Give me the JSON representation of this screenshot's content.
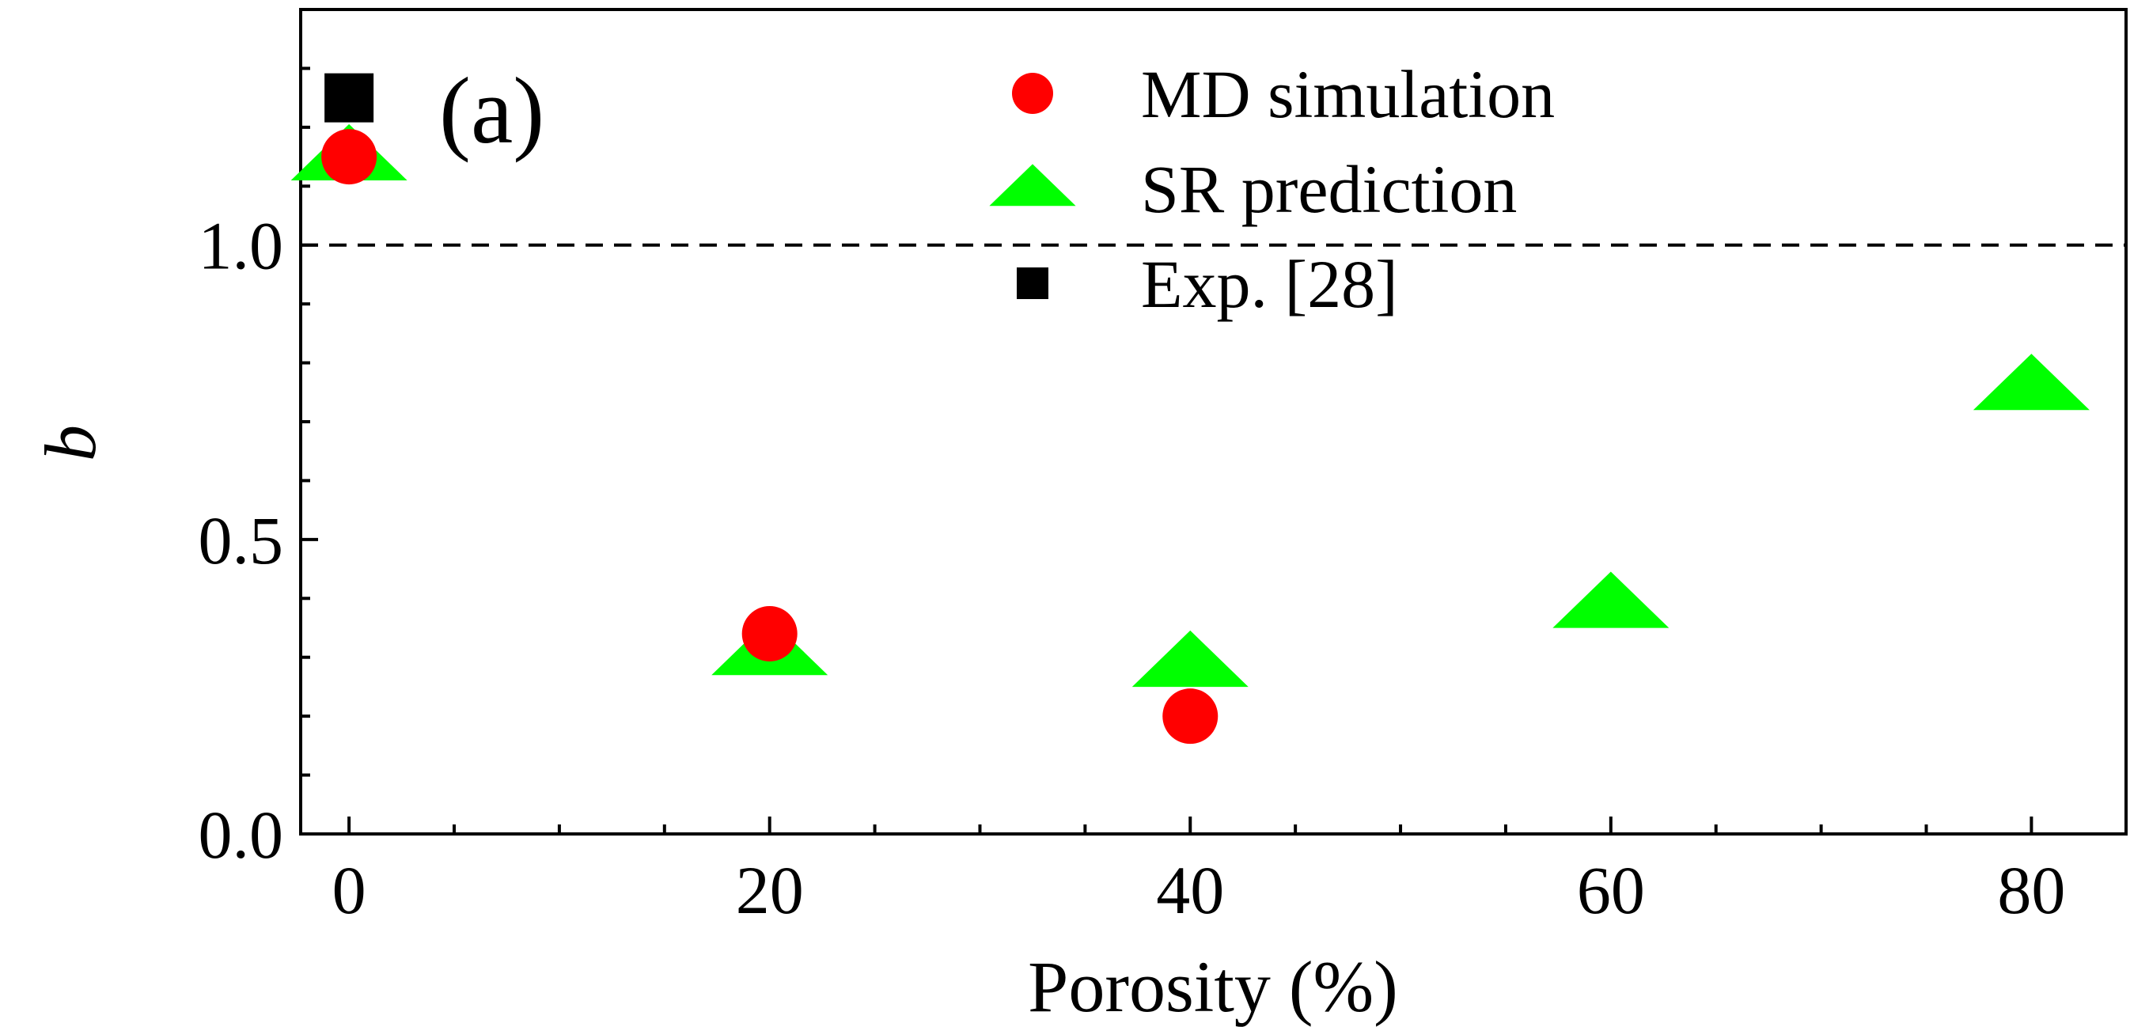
{
  "chart_data": {
    "type": "scatter",
    "panel_label": "(a)",
    "title": "",
    "xlabel": "Porosity (%)",
    "ylabel": "b",
    "xlim": [
      -2.3,
      84.5
    ],
    "ylim": [
      0.0,
      1.4
    ],
    "x_ticks": [
      0,
      20,
      40,
      60,
      80
    ],
    "y_ticks": [
      0.0,
      0.5,
      1.0
    ],
    "x_tick_labels": [
      "0",
      "20",
      "40",
      "60",
      "80"
    ],
    "y_tick_labels": [
      "0.0",
      "0.5",
      "1.0"
    ],
    "reference_line": {
      "y": 1.0,
      "style": "dashed",
      "color": "#000000"
    },
    "legend": {
      "placement": "top-center"
    },
    "series": [
      {
        "name": "MD simulation",
        "marker": "circle",
        "color": "#ff0000",
        "x": [
          0,
          20,
          40
        ],
        "y": [
          1.15,
          0.34,
          0.2
        ]
      },
      {
        "name": "SR prediction",
        "marker": "triangle",
        "color": "#00ff00",
        "x": [
          0,
          20,
          40,
          60,
          80
        ],
        "y": [
          1.15,
          0.31,
          0.29,
          0.39,
          0.76
        ]
      },
      {
        "name": "Exp. [28]",
        "marker": "square",
        "color": "#000000",
        "x": [
          0
        ],
        "y": [
          1.25
        ]
      }
    ]
  }
}
